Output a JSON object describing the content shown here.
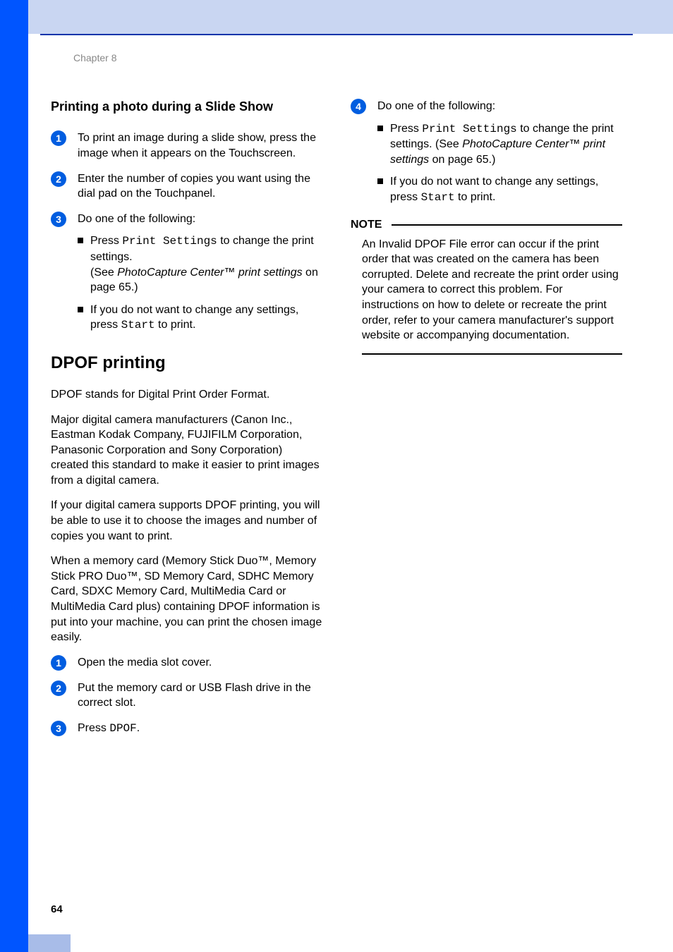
{
  "colors": {
    "sidebar": "#0055ff",
    "topband": "#c9d6f2",
    "toprule": "#0033aa",
    "bottomband": "#a8bce8",
    "stepcircle": "#005de0",
    "chapter_text": "#888888"
  },
  "typography": {
    "body_size_pt": 12,
    "title_size_pt": 14,
    "h2_size_pt": 18
  },
  "pagenum": "64",
  "chapter": "Chapter 8",
  "left": {
    "title": "Printing a photo during a Slide Show",
    "steps": [
      {
        "num": "1",
        "text": "To print an image during a slide show, press the image when it appears on the Touchscreen."
      },
      {
        "num": "2",
        "text": "Enter the number of copies you want using the dial pad on the Touchpanel."
      },
      {
        "num": "3",
        "text": "Do one of the following:",
        "bullets": [
          {
            "pre": "Press ",
            "mono": "Print Settings",
            "post": " to change the print settings.",
            "line2_pre": "(See ",
            "line2_italic": "PhotoCapture Center™ print settings",
            "line2_post": " on page 65.)"
          },
          {
            "pre": "If you do not want to change any settings, press ",
            "mono": "Start",
            "post": " to print."
          }
        ]
      }
    ],
    "h2": "DPOF printing",
    "paras": [
      "DPOF stands for Digital Print Order Format.",
      "Major digital camera manufacturers (Canon Inc., Eastman Kodak Company, FUJIFILM Corporation, Panasonic Corporation and Sony Corporation) created this standard to make it easier to print images from a digital camera.",
      "If your digital camera supports DPOF printing, you will be able to use it to choose the images and number of copies you want to print.",
      "When a memory card (Memory Stick Duo™, Memory Stick PRO Duo™, SD Memory Card, SDHC Memory Card, SDXC Memory Card, MultiMedia Card or MultiMedia Card plus) containing DPOF information is put into your machine, you can print the chosen image easily."
    ],
    "steps2": [
      {
        "num": "1",
        "text": "Open the media slot cover."
      },
      {
        "num": "2",
        "text": "Put the memory card or USB Flash drive in the correct slot."
      },
      {
        "num": "3",
        "pre": "Press ",
        "mono": "DPOF",
        "post": "."
      }
    ]
  },
  "right": {
    "step4": {
      "num": "4",
      "text": "Do one of the following:",
      "bullets": [
        {
          "pre": "Press ",
          "mono": "Print Settings",
          "post": " to change the print settings. (See ",
          "italic": "PhotoCapture Center™ print settings",
          "post2": " on page 65.)"
        },
        {
          "pre": "If you do not want to change any settings, press ",
          "mono": "Start",
          "post": " to print."
        }
      ]
    },
    "note_label": "NOTE",
    "note_body": "An Invalid DPOF File error can occur if the print order that was created on the camera has been corrupted. Delete and recreate the print order using your camera to correct this problem. For instructions on how to delete or recreate the print order, refer to your camera manufacturer's support website or accompanying documentation."
  }
}
